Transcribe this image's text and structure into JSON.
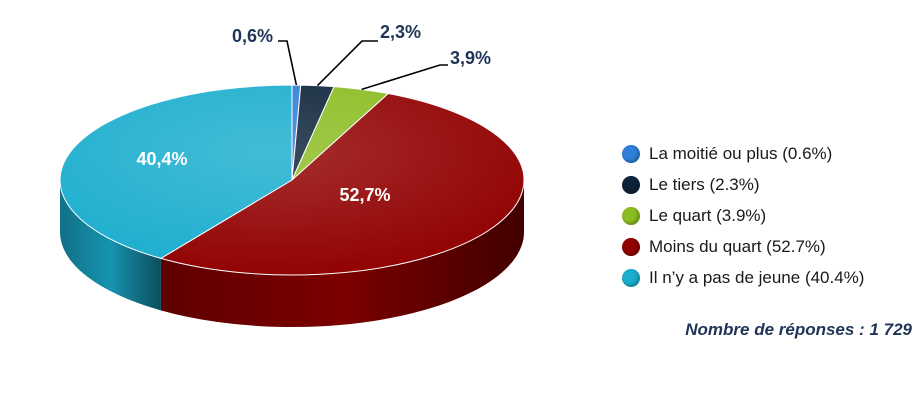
{
  "chart_data": {
    "type": "pie",
    "title": "",
    "categories": [
      "La moitié ou plus",
      "Le tiers",
      "Le quart",
      "Moins du quart",
      "Il n’y a pas de jeune"
    ],
    "values": [
      0.6,
      2.3,
      3.9,
      52.7,
      40.4
    ],
    "data_labels": [
      "0,6%",
      "2,3%",
      "3,9%",
      "52,7%",
      "40,4%"
    ],
    "legend_labels": [
      "La moitié ou plus (0.6%)",
      "Le tiers (2.3%)",
      "Le quart (3.9%)",
      "Moins du quart (52.7%)",
      "Il n’y a pas de jeune (40.4%)"
    ],
    "colors": [
      "#2f7ed8",
      "#0d233a",
      "#8bbc21",
      "#910000",
      "#1aadce"
    ],
    "legend_placement": "right",
    "style": "3d"
  },
  "footnote": "Nombre de réponses : 1 729"
}
